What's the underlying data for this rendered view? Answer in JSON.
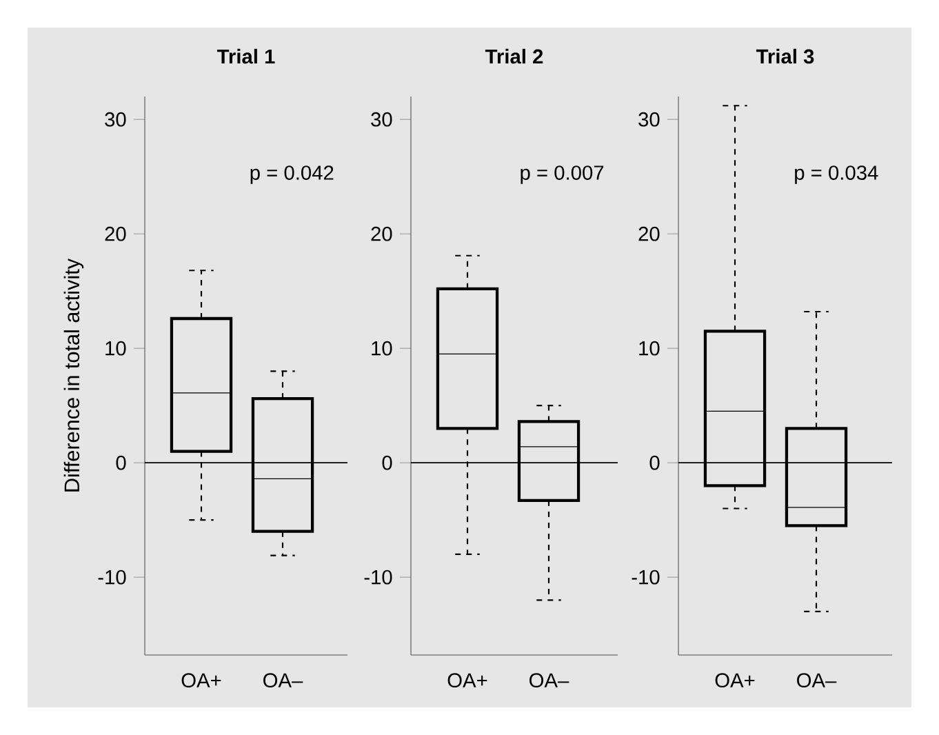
{
  "chart_data": [
    {
      "type": "box",
      "title": "Trial 1",
      "ylabel": "Difference in total activity",
      "categories": [
        "OA+",
        "OA–"
      ],
      "boxes": [
        {
          "low": -5.0,
          "q1": 1.0,
          "median": 6.1,
          "q3": 12.6,
          "high": 16.8
        },
        {
          "low": -8.1,
          "q1": -6.0,
          "median": -1.4,
          "q3": 5.6,
          "high": 8.0
        }
      ],
      "color": "#000000",
      "ylim": [
        -16.8,
        32
      ],
      "yticks": [
        -10,
        0,
        10,
        20,
        30
      ],
      "ref_lines": [
        {
          "axis": "y",
          "value": 0
        }
      ],
      "annotations": [
        "p = 0.042"
      ],
      "grid": false
    },
    {
      "type": "box",
      "title": "Trial 2",
      "categories": [
        "OA+",
        "OA–"
      ],
      "boxes": [
        {
          "low": -8.0,
          "q1": 3.0,
          "median": 9.5,
          "q3": 15.2,
          "high": 18.1
        },
        {
          "low": -12.0,
          "q1": -3.3,
          "median": 1.4,
          "q3": 3.6,
          "high": 5.0
        }
      ],
      "color": "#000000",
      "ylim": [
        -16.8,
        32
      ],
      "yticks": [
        -10,
        0,
        10,
        20,
        30
      ],
      "ref_lines": [
        {
          "axis": "y",
          "value": 0
        }
      ],
      "annotations": [
        "p = 0.007"
      ],
      "grid": false
    },
    {
      "type": "box",
      "title": "Trial 3",
      "categories": [
        "OA+",
        "OA–"
      ],
      "boxes": [
        {
          "low": -4.0,
          "q1": -2.0,
          "median": 4.5,
          "q3": 11.5,
          "high": 31.2
        },
        {
          "low": -13.0,
          "q1": -5.5,
          "median": -3.9,
          "q3": 3.0,
          "high": 13.2
        }
      ],
      "color": "#000000",
      "ylim": [
        -16.8,
        32
      ],
      "yticks": [
        -10,
        0,
        10,
        20,
        30
      ],
      "ref_lines": [
        {
          "axis": "y",
          "value": 0
        }
      ],
      "annotations": [
        "p = 0.034"
      ],
      "grid": false
    }
  ]
}
